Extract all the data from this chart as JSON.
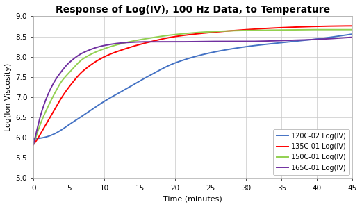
{
  "title": "Response of Log(IV), 100 Hz Data, to Temperature",
  "xlabel": "Time (minutes)",
  "ylabel": "Log(Ion Viscosity)",
  "xlim": [
    0,
    45
  ],
  "ylim": [
    5,
    9
  ],
  "yticks": [
    5,
    5.5,
    6,
    6.5,
    7,
    7.5,
    8,
    8.5,
    9
  ],
  "xticks": [
    0,
    5,
    10,
    15,
    20,
    25,
    30,
    35,
    40,
    45
  ],
  "curves": [
    {
      "label": "120C-02 Log(IV)",
      "color": "#4472C4",
      "points_t": [
        0,
        1,
        2,
        3,
        4,
        5,
        7,
        10,
        13,
        16,
        20,
        25,
        30,
        35,
        40,
        43
      ],
      "points_y": [
        5.97,
        5.99,
        6.03,
        6.1,
        6.2,
        6.32,
        6.55,
        6.9,
        7.2,
        7.5,
        7.85,
        8.1,
        8.25,
        8.35,
        8.44,
        8.51
      ]
    },
    {
      "label": "135C-01 Log(IV)",
      "color": "#FF0000",
      "points_t": [
        0,
        0.5,
        1,
        2,
        3,
        4,
        5,
        7,
        10,
        13,
        16,
        20,
        25,
        30,
        35,
        40,
        43
      ],
      "points_y": [
        5.83,
        5.95,
        6.1,
        6.4,
        6.7,
        7.0,
        7.25,
        7.65,
        8.0,
        8.2,
        8.35,
        8.5,
        8.6,
        8.67,
        8.72,
        8.75,
        8.76
      ]
    },
    {
      "label": "150C-01 Log(IV)",
      "color": "#92D050",
      "points_t": [
        0,
        0.5,
        1,
        2,
        3,
        4,
        5,
        7,
        10,
        13,
        16,
        20,
        25,
        30,
        35,
        40,
        43
      ],
      "points_y": [
        5.83,
        6.1,
        6.35,
        6.75,
        7.1,
        7.4,
        7.6,
        7.95,
        8.2,
        8.35,
        8.45,
        8.55,
        8.62,
        8.65,
        8.66,
        8.67,
        8.67
      ]
    },
    {
      "label": "165C-01 Log(IV)",
      "color": "#7030A0",
      "points_t": [
        0,
        0.5,
        1,
        2,
        3,
        4,
        5,
        7,
        10,
        13,
        16,
        20,
        25,
        30,
        35,
        40,
        43
      ],
      "points_y": [
        5.83,
        6.2,
        6.55,
        7.05,
        7.4,
        7.65,
        7.85,
        8.1,
        8.28,
        8.35,
        8.37,
        8.37,
        8.38,
        8.38,
        8.4,
        8.43,
        8.46
      ]
    }
  ],
  "background_color": "#FFFFFF",
  "grid_color": "#C8C8C8",
  "title_fontsize": 10,
  "axis_label_fontsize": 8,
  "tick_fontsize": 7.5,
  "legend_fontsize": 7,
  "linewidth": 1.4
}
